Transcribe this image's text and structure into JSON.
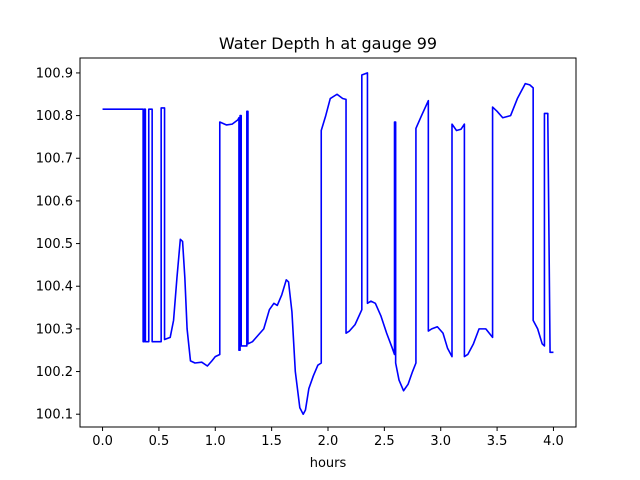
{
  "chart_data": {
    "type": "line",
    "title": "Water Depth h at gauge 99",
    "xlabel": "hours",
    "ylabel": "",
    "xlim": [
      -0.2,
      4.2
    ],
    "ylim": [
      100.07,
      100.935
    ],
    "x_ticks": [
      0.0,
      0.5,
      1.0,
      1.5,
      2.0,
      2.5,
      3.0,
      3.5,
      4.0
    ],
    "x_tick_labels": [
      "0.0",
      "0.5",
      "1.0",
      "1.5",
      "2.0",
      "2.5",
      "3.0",
      "3.5",
      "4.0"
    ],
    "y_ticks": [
      100.1,
      100.2,
      100.3,
      100.4,
      100.5,
      100.6,
      100.7,
      100.8,
      100.9
    ],
    "y_tick_labels": [
      "100.1",
      "100.2",
      "100.3",
      "100.4",
      "100.5",
      "100.6",
      "100.7",
      "100.8",
      "100.9"
    ],
    "grid": false,
    "series": [
      {
        "color": "#0000ff",
        "x": [
          0.0,
          0.36,
          0.36,
          0.37,
          0.37,
          0.38,
          0.38,
          0.41,
          0.41,
          0.44,
          0.44,
          0.52,
          0.52,
          0.55,
          0.55,
          0.6,
          0.63,
          0.66,
          0.69,
          0.71,
          0.73,
          0.75,
          0.78,
          0.82,
          0.88,
          0.93,
          0.97,
          1.0,
          1.04,
          1.04,
          1.1,
          1.15,
          1.2,
          1.21,
          1.21,
          1.22,
          1.22,
          1.23,
          1.23,
          1.28,
          1.28,
          1.29,
          1.29,
          1.33,
          1.38,
          1.43,
          1.48,
          1.52,
          1.55,
          1.59,
          1.63,
          1.65,
          1.68,
          1.71,
          1.75,
          1.78,
          1.8,
          1.83,
          1.87,
          1.91,
          1.94,
          1.94,
          1.98,
          2.02,
          2.08,
          2.13,
          2.16,
          2.16,
          2.19,
          2.24,
          2.3,
          2.3,
          2.35,
          2.35,
          2.38,
          2.42,
          2.47,
          2.52,
          2.57,
          2.59,
          2.59,
          2.6,
          2.6,
          2.63,
          2.67,
          2.71,
          2.75,
          2.78,
          2.78,
          2.83,
          2.89,
          2.89,
          2.92,
          2.97,
          3.02,
          3.06,
          3.1,
          3.1,
          3.14,
          3.18,
          3.21,
          3.21,
          3.24,
          3.29,
          3.34,
          3.4,
          3.46,
          3.46,
          3.5,
          3.55,
          3.62,
          3.68,
          3.75,
          3.79,
          3.82,
          3.82,
          3.86,
          3.9,
          3.92,
          3.92,
          3.95,
          3.95,
          3.97,
          4.0
        ],
        "values": [
          100.815,
          100.815,
          100.27,
          100.27,
          100.815,
          100.815,
          100.27,
          100.27,
          100.815,
          100.815,
          100.27,
          100.27,
          100.818,
          100.818,
          100.275,
          100.28,
          100.32,
          100.42,
          100.51,
          100.505,
          100.42,
          100.3,
          100.225,
          100.22,
          100.222,
          100.213,
          100.225,
          100.235,
          100.24,
          100.785,
          100.778,
          100.78,
          100.79,
          100.795,
          100.25,
          100.25,
          100.8,
          100.8,
          100.26,
          100.26,
          100.81,
          100.81,
          100.265,
          100.27,
          100.285,
          100.3,
          100.345,
          100.36,
          100.355,
          100.38,
          100.415,
          100.41,
          100.34,
          100.2,
          100.115,
          100.1,
          100.11,
          100.16,
          100.19,
          100.215,
          100.22,
          100.765,
          100.8,
          100.84,
          100.85,
          100.84,
          100.838,
          100.29,
          100.295,
          100.31,
          100.345,
          100.895,
          100.9,
          100.36,
          100.365,
          100.36,
          100.33,
          100.29,
          100.255,
          100.24,
          100.785,
          100.785,
          100.22,
          100.18,
          100.155,
          100.17,
          100.2,
          100.22,
          100.77,
          100.8,
          100.835,
          100.295,
          100.3,
          100.305,
          100.29,
          100.255,
          100.235,
          100.78,
          100.765,
          100.768,
          100.78,
          100.235,
          100.24,
          100.265,
          100.3,
          100.3,
          100.28,
          100.82,
          100.81,
          100.795,
          100.8,
          100.84,
          100.875,
          100.872,
          100.865,
          100.32,
          100.3,
          100.265,
          100.26,
          100.805,
          100.805,
          100.795,
          100.245,
          100.245
        ]
      }
    ]
  }
}
